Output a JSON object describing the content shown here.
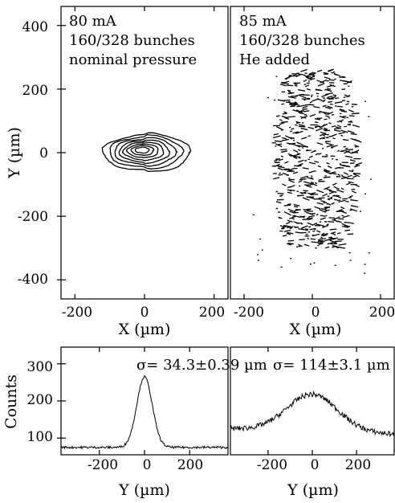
{
  "chart_data": [
    {
      "type": "contour",
      "panel": "top-left",
      "annotation": [
        "80 mA",
        "160/328 bunches",
        "nominal pressure"
      ],
      "xlabel": "X (µm)",
      "ylabel": "Y (µm)",
      "xlim": [
        -240,
        240
      ],
      "ylim": [
        -460,
        460
      ],
      "xticks": [
        -200,
        0,
        200
      ],
      "yticks": [
        400,
        200,
        0,
        -200,
        -400
      ],
      "xtick_labels": [
        "-200",
        "0",
        "200"
      ],
      "ytick_labels": [
        "400",
        "200",
        "0",
        "-200",
        "-400"
      ],
      "ellipses": [
        {
          "cx": 5,
          "cy": 0,
          "rx": 125,
          "ry": 58
        },
        {
          "cx": 3,
          "cy": 2,
          "rx": 105,
          "ry": 50
        },
        {
          "cx": 1,
          "cy": 3,
          "rx": 88,
          "ry": 42
        },
        {
          "cx": -1,
          "cy": 4,
          "rx": 72,
          "ry": 35
        },
        {
          "cx": -3,
          "cy": 5,
          "rx": 58,
          "ry": 28
        },
        {
          "cx": -5,
          "cy": 6,
          "rx": 45,
          "ry": 21
        },
        {
          "cx": -6,
          "cy": 7,
          "rx": 32,
          "ry": 15
        },
        {
          "cx": -7,
          "cy": 8,
          "rx": 20,
          "ry": 9
        }
      ]
    },
    {
      "type": "contour",
      "panel": "top-right",
      "annotation": [
        "85 mA",
        "160/328 bunches",
        "He added"
      ],
      "xlabel": "X (µm)",
      "xlim": [
        -240,
        240
      ],
      "ylim": [
        -460,
        460
      ],
      "xticks": [
        -200,
        0,
        200
      ],
      "xtick_labels": [
        "-200",
        "0",
        "200"
      ],
      "blob": {
        "cx": 5,
        "cy": -30,
        "half_width_x": 125,
        "y_range": [
          -300,
          260
        ],
        "levels": 9
      }
    },
    {
      "type": "line",
      "panel": "bottom-left",
      "annotation": "σ= 34.3±0.39 µm",
      "xlabel": "Y (µm)",
      "ylabel": "Counts",
      "xlim": [
        -370,
        370
      ],
      "ylim": [
        55,
        345
      ],
      "xticks": [
        -200,
        0,
        200
      ],
      "yticks": [
        300,
        200,
        100
      ],
      "xtick_labels": [
        "-200",
        "0",
        "200"
      ],
      "ytick_labels": [
        "300",
        "200",
        "100"
      ],
      "gaussian": {
        "mu": 0,
        "sigma": 34.3,
        "amplitude": 190,
        "baseline": 75
      }
    },
    {
      "type": "line",
      "panel": "bottom-right",
      "annotation": "σ=  114±3.1 µm",
      "xlabel": "Y (µm)",
      "xlim": [
        -370,
        370
      ],
      "ylim": [
        55,
        345
      ],
      "xticks": [
        -200,
        0,
        200
      ],
      "xtick_labels": [
        "-200",
        "0",
        "200"
      ],
      "gaussian": {
        "mu": 0,
        "sigma": 114,
        "amplitude": 100,
        "baseline": 118
      }
    }
  ]
}
